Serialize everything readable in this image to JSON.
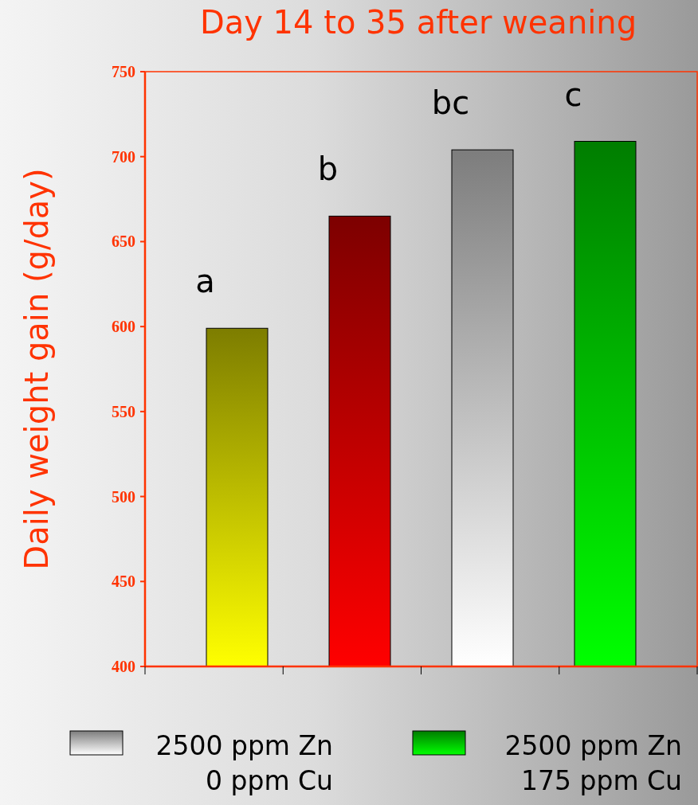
{
  "chart_data": {
    "type": "bar",
    "title": "Day 14 to 35 after weaning",
    "ylabel": "Daily weight gain (g/day)",
    "categories": [
      null,
      null,
      null,
      null
    ],
    "series": [
      {
        "color": "#ffff00",
        "values": [
          599,
          null,
          null,
          null
        ]
      },
      {
        "color": "#ff0000",
        "values": [
          null,
          665,
          null,
          null
        ]
      },
      {
        "name": "2500 ppm Zn\n0 ppm Cu",
        "color": "#ffffff",
        "values": [
          null,
          null,
          704,
          null
        ]
      },
      {
        "name": "2500 ppm Zn\n175 ppm Cu",
        "color": "#00ff00",
        "values": [
          null,
          null,
          null,
          709
        ]
      }
    ],
    "ylim": [
      400,
      750
    ],
    "yticks": [
      400,
      450,
      500,
      550,
      600,
      650,
      700,
      750
    ],
    "annotations": [
      "a",
      "b",
      "bc",
      "c"
    ],
    "legend": "bottom",
    "grid": false
  }
}
